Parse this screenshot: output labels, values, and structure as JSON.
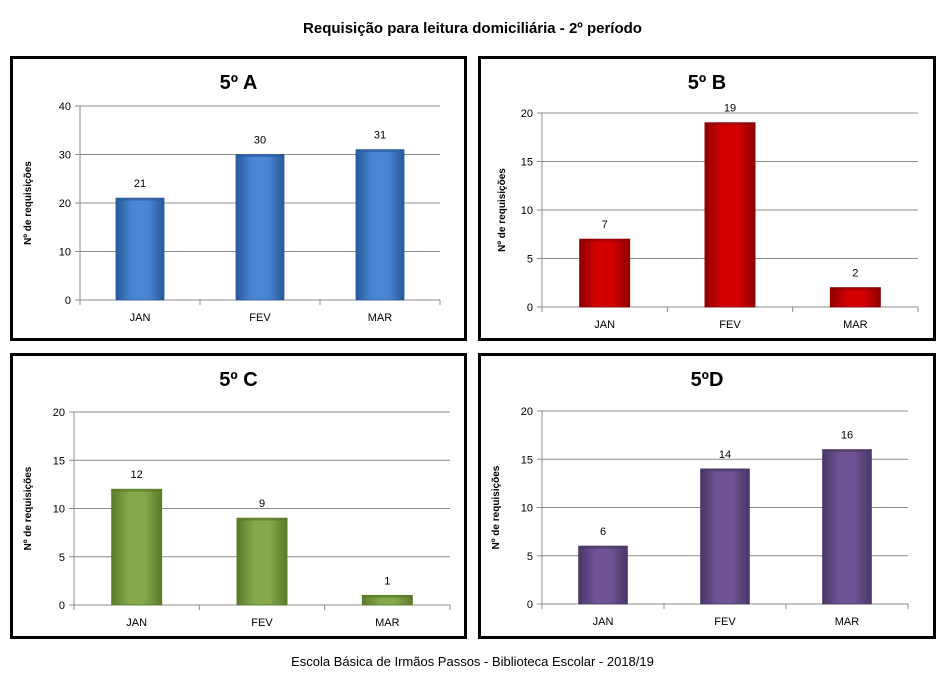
{
  "title": "Requisição para leitura domiciliária - 2º período",
  "footer": "Escola Básica de Irmãos Passos - Biblioteca Escolar  - 2018/19",
  "chart_data": [
    {
      "type": "bar",
      "title": "5º A",
      "categories": [
        "JAN",
        "FEV",
        "MAR"
      ],
      "values": [
        21,
        30,
        31
      ],
      "xlabel": "",
      "ylabel": "Nº de requisições",
      "ylim": [
        0,
        40
      ],
      "yticks": [
        0,
        10,
        20,
        30,
        40
      ],
      "color": "#4A86D6",
      "color_dark": "#2A5A9A",
      "grid": true
    },
    {
      "type": "bar",
      "title": "5º B",
      "categories": [
        "JAN",
        "FEV",
        "MAR"
      ],
      "values": [
        7,
        19,
        2
      ],
      "xlabel": "",
      "ylabel": "Nº de requisições",
      "ylim": [
        0,
        20
      ],
      "yticks": [
        0,
        5,
        10,
        15,
        20
      ],
      "color": "#D40000",
      "color_dark": "#8E0000",
      "grid": true
    },
    {
      "type": "bar",
      "title": "5º C",
      "categories": [
        "JAN",
        "FEV",
        "MAR"
      ],
      "values": [
        12,
        9,
        1
      ],
      "xlabel": "",
      "ylabel": "Nº de requisições",
      "ylim": [
        0,
        20
      ],
      "yticks": [
        0,
        5,
        10,
        15,
        20
      ],
      "color": "#86A84A",
      "color_dark": "#5A7A2A",
      "grid": true
    },
    {
      "type": "bar",
      "title": "5ºD",
      "categories": [
        "JAN",
        "FEV",
        "MAR"
      ],
      "values": [
        6,
        14,
        16
      ],
      "xlabel": "",
      "ylabel": "Nº de requisições",
      "ylim": [
        0,
        20
      ],
      "yticks": [
        0,
        5,
        10,
        15,
        20
      ],
      "color": "#6E5494",
      "color_dark": "#4A3666",
      "grid": true
    }
  ]
}
